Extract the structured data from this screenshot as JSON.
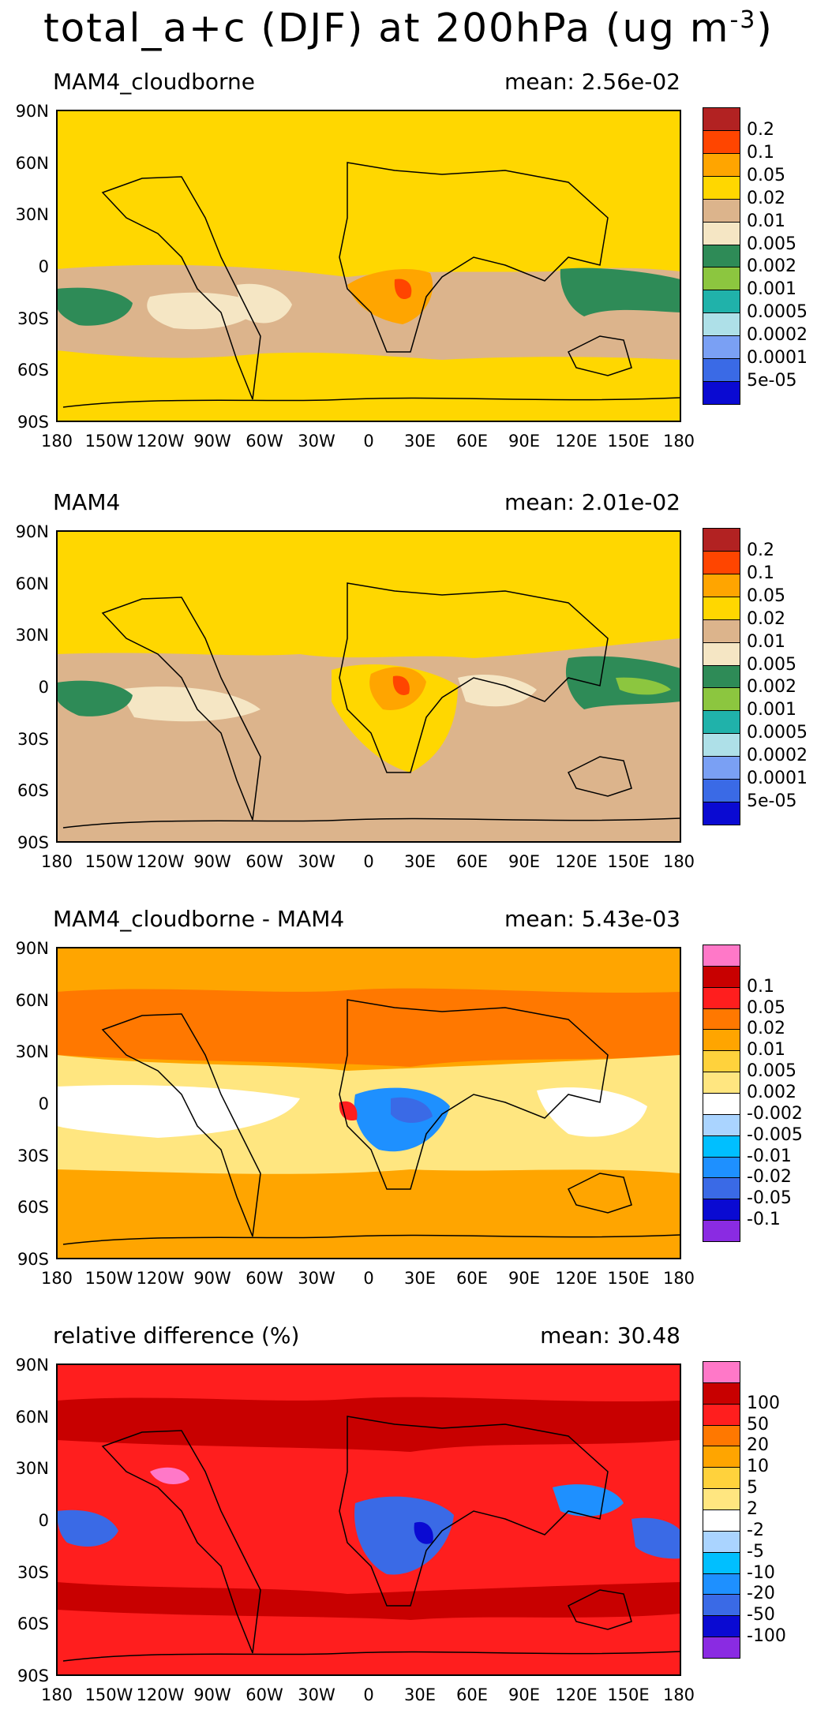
{
  "figure": {
    "title": "total_a+c (DJF) at 200hPa (ug m",
    "title_exp": "-3",
    "title_close": ")"
  },
  "axes": {
    "lat_ticks": [
      "90N",
      "60N",
      "30N",
      "0",
      "30S",
      "60S",
      "90S"
    ],
    "lon_ticks": [
      "180",
      "150W",
      "120W",
      "90W",
      "60W",
      "30W",
      "0",
      "30E",
      "60E",
      "90E",
      "120E",
      "150E",
      "180"
    ]
  },
  "panels": [
    {
      "title": "MAM4_cloudborne",
      "mean": "mean: 2.56e-02",
      "colors": [
        "#0a0ad2",
        "#3a6ae6",
        "#7aa0f4",
        "#aee0e8",
        "#20b2aa",
        "#8cc63f",
        "#2e8b57",
        "#f5e6c4",
        "#dcb48c",
        "#ffd700",
        "#ffa500",
        "#ff4500",
        "#b22222"
      ],
      "labels": [
        "5e-05",
        "0.0001",
        "0.0002",
        "0.0005",
        "0.001",
        "0.002",
        "0.005",
        "0.01",
        "0.02",
        "0.05",
        "0.1",
        "0.2"
      ],
      "background": "#ffd700"
    },
    {
      "title": "MAM4",
      "mean": "mean: 2.01e-02",
      "colors": [
        "#0a0ad2",
        "#3a6ae6",
        "#7aa0f4",
        "#aee0e8",
        "#20b2aa",
        "#8cc63f",
        "#2e8b57",
        "#f5e6c4",
        "#dcb48c",
        "#ffd700",
        "#ffa500",
        "#ff4500",
        "#b22222"
      ],
      "labels": [
        "5e-05",
        "0.0001",
        "0.0002",
        "0.0005",
        "0.001",
        "0.002",
        "0.005",
        "0.01",
        "0.02",
        "0.05",
        "0.1",
        "0.2"
      ],
      "background": "#dcb48c"
    },
    {
      "title": "MAM4_cloudborne - MAM4",
      "mean": "mean: 5.43e-03",
      "colors": [
        "#8a2be2",
        "#0a0ad2",
        "#3a6ae6",
        "#1e90ff",
        "#00bfff",
        "#aad4ff",
        "#ffffff",
        "#ffe680",
        "#ffd23c",
        "#ffa500",
        "#ff7800",
        "#ff1e1e",
        "#c80000",
        "#ff78c8"
      ],
      "labels": [
        "-0.1",
        "-0.05",
        "-0.02",
        "-0.01",
        "-0.005",
        "-0.002",
        "0.002",
        "0.005",
        "0.01",
        "0.02",
        "0.05",
        "0.1"
      ],
      "background": "#ffa500"
    },
    {
      "title": "relative difference (%)",
      "mean": "mean: 30.48",
      "colors": [
        "#8a2be2",
        "#0a0ad2",
        "#3a6ae6",
        "#1e90ff",
        "#00bfff",
        "#aad4ff",
        "#ffffff",
        "#ffe680",
        "#ffd23c",
        "#ffa500",
        "#ff7800",
        "#ff1e1e",
        "#c80000",
        "#ff78c8"
      ],
      "labels": [
        "-100",
        "-50",
        "-20",
        "-10",
        "-5",
        "-2",
        "2",
        "5",
        "10",
        "20",
        "50",
        "100"
      ],
      "background": "#ff1e1e"
    }
  ]
}
